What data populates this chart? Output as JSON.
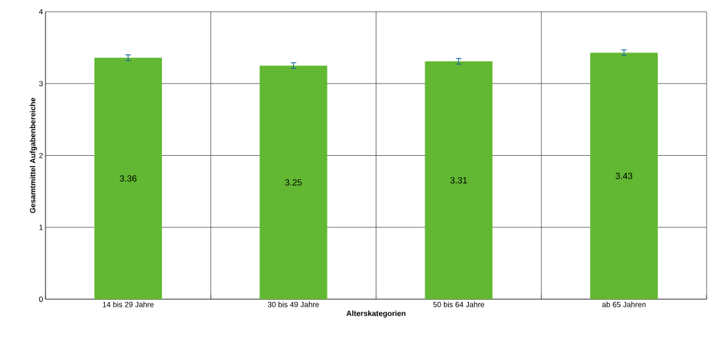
{
  "chart_data": {
    "type": "bar",
    "xlabel": "Alterskategorien",
    "ylabel": "Gesamtmittel Aufgabenbereiche",
    "categories": [
      "14 bis 29 Jahre",
      "30 bis 49 Jahre",
      "50 bis 64 Jahre",
      "ab 65 Jahren"
    ],
    "values": [
      3.36,
      3.25,
      3.31,
      3.43
    ],
    "errors": [
      0.04,
      0.04,
      0.04,
      0.04
    ],
    "color": "#62b832",
    "ylim": [
      0,
      4
    ],
    "yticks": [
      0,
      1,
      2,
      3,
      4
    ],
    "grid": true,
    "data_labels": true
  }
}
